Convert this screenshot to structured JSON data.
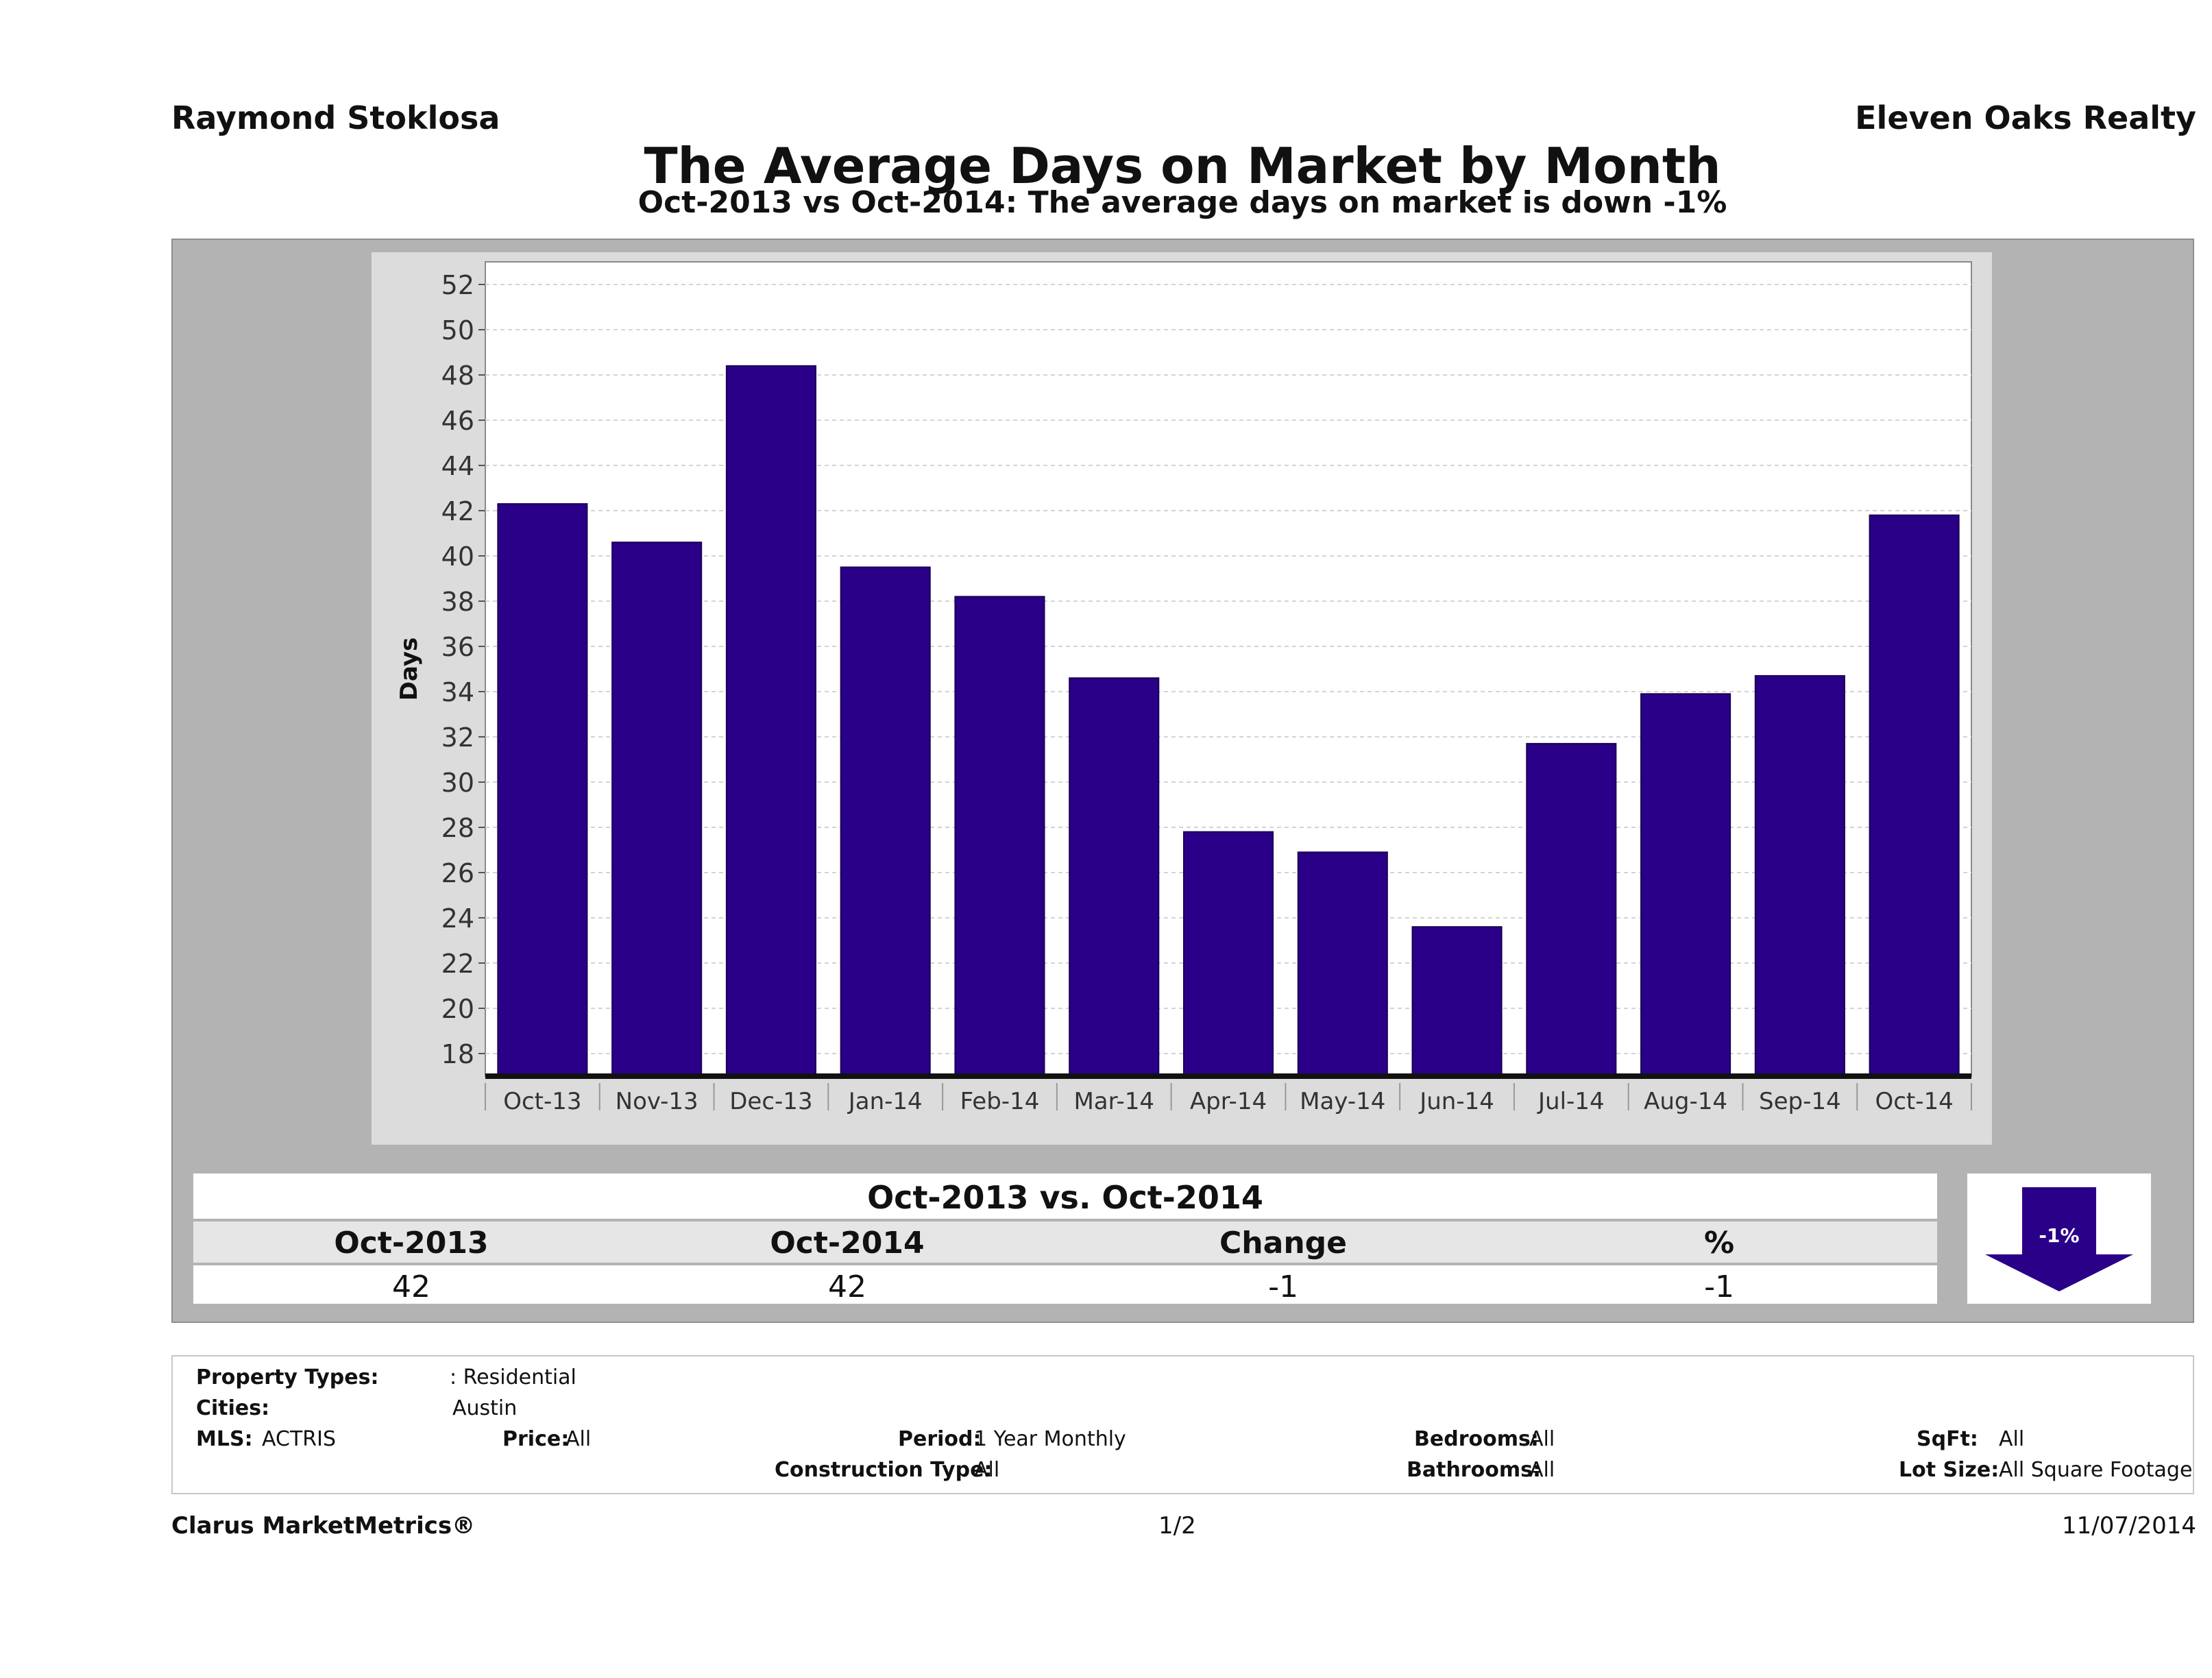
{
  "header": {
    "agent": "Raymond Stoklosa",
    "company": "Eleven Oaks Realty",
    "title": "The Average Days on Market by Month",
    "subtitle": "Oct-2013 vs Oct-2014: The average days on market is down -1%"
  },
  "chart_data": {
    "type": "bar",
    "categories": [
      "Oct-13",
      "Nov-13",
      "Dec-13",
      "Jan-14",
      "Feb-14",
      "Mar-14",
      "Apr-14",
      "May-14",
      "Jun-14",
      "Jul-14",
      "Aug-14",
      "Sep-14",
      "Oct-14"
    ],
    "values": [
      42.3,
      40.6,
      48.4,
      39.5,
      38.2,
      34.6,
      27.8,
      26.9,
      23.6,
      31.7,
      33.9,
      34.7,
      41.8
    ],
    "ylabel": "Days",
    "xlabel": "",
    "ylim": [
      17,
      53
    ],
    "yticks": [
      18,
      20,
      22,
      24,
      26,
      28,
      30,
      32,
      34,
      36,
      38,
      40,
      42,
      44,
      46,
      48,
      50,
      52
    ],
    "bar_color": "#2a0088",
    "grid": true,
    "legend": "none"
  },
  "summary": {
    "title": "Oct-2013 vs. Oct-2014",
    "headers": [
      "Oct-2013",
      "Oct-2014",
      "Change",
      "%"
    ],
    "values": [
      "42",
      "42",
      "-1",
      "-1"
    ],
    "badge": "-1%",
    "badge_icon": "down-arrow-icon",
    "badge_color": "#2a0088"
  },
  "filters": {
    "property_types_label": "Property Types:",
    "property_types_value": ": Residential",
    "cities_label": "Cities:",
    "cities_value": "Austin",
    "mls_label": "MLS:",
    "mls_value": "ACTRIS",
    "price_label": "Price:",
    "price_value": "All",
    "period_label": "Period:",
    "period_value": "1 Year Monthly",
    "construction_label": "Construction Type:",
    "construction_value": "All",
    "bedrooms_label": "Bedrooms:",
    "bedrooms_value": "All",
    "bathrooms_label": "Bathrooms:",
    "bathrooms_value": "All",
    "sqft_label": "SqFt:",
    "sqft_value": "All",
    "lotsize_label": "Lot Size:",
    "lotsize_value": "All Square Footage"
  },
  "footer": {
    "brand": "Clarus MarketMetrics®",
    "page": "1/2",
    "date": "11/07/2014"
  }
}
